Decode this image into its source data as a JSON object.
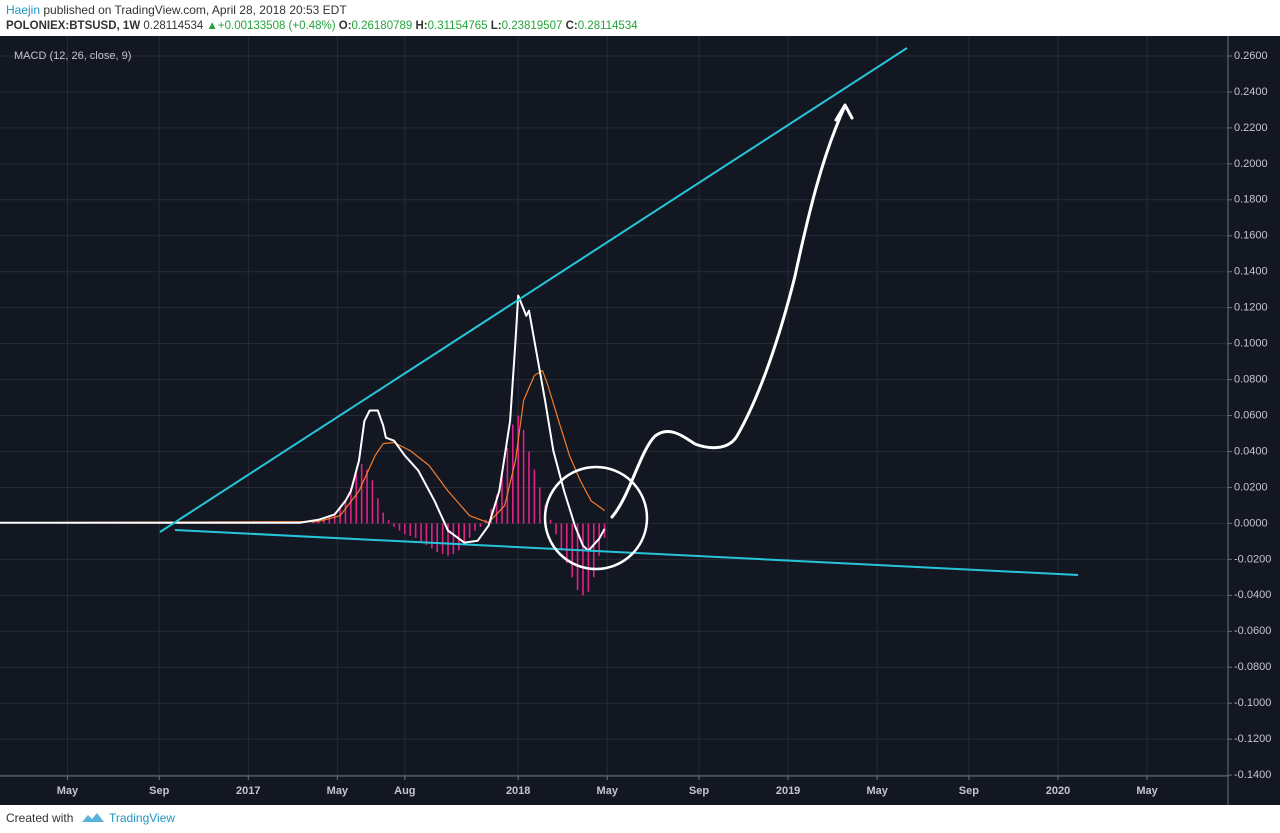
{
  "chart_data": {
    "type": "line",
    "author": "Haejin",
    "published": "published on TradingView.com, April 28, 2018 20:53 EDT",
    "symbol": "POLONIEX:BTSUSD, 1W",
    "last": "0.28114534",
    "change_marker": "▲",
    "change": "+0.00133508 (+0.48%)",
    "ohlc": [
      {
        "label": "O:",
        "value": "0.26180789"
      },
      {
        "label": "H:",
        "value": "0.31154765"
      },
      {
        "label": "L:",
        "value": "0.23819507"
      },
      {
        "label": "C:",
        "value": "0.28114534"
      }
    ],
    "subtitle": "MACD (12, 26, close, 9)",
    "footer": "Created with",
    "brand": "TradingView",
    "xlim": [
      2016.08,
      2020.63
    ],
    "ylim": [
      -0.1405,
      0.27
    ],
    "grid": true,
    "xticks": [
      {
        "value": 2016.33,
        "label": "May"
      },
      {
        "value": 2016.67,
        "label": "Sep"
      },
      2017,
      {
        "value": 2017.33,
        "label": "May"
      },
      {
        "value": 2017.58,
        "label": "Aug"
      },
      2018,
      {
        "value": 2018.33,
        "label": "May"
      },
      {
        "value": 2018.67,
        "label": "Sep"
      },
      2019,
      {
        "value": 2019.33,
        "label": "May"
      },
      {
        "value": 2019.67,
        "label": "Sep"
      },
      2020,
      {
        "value": 2020.33,
        "label": "May"
      }
    ],
    "yticks": [
      {
        "value": 0.26,
        "label": "0.2600"
      },
      {
        "value": 0.24,
        "label": "0.2400"
      },
      {
        "value": 0.22,
        "label": "0.2200"
      },
      {
        "value": 0.2,
        "label": "0.2000"
      },
      {
        "value": 0.18,
        "label": "0.1800"
      },
      {
        "value": 0.16,
        "label": "0.1600"
      },
      {
        "value": 0.14,
        "label": "0.1400"
      },
      {
        "value": 0.12,
        "label": "0.1200"
      },
      {
        "value": 0.1,
        "label": "0.1000"
      },
      {
        "value": 0.08,
        "label": "0.0800"
      },
      {
        "value": 0.06,
        "label": "0.0600"
      },
      {
        "value": 0.04,
        "label": "0.0400"
      },
      {
        "value": 0.02,
        "label": "0.0200"
      },
      {
        "value": 0,
        "label": "0.0000"
      },
      {
        "value": -0.02,
        "label": "-0.0200"
      },
      {
        "value": -0.04,
        "label": "-0.0400"
      },
      {
        "value": -0.06,
        "label": "-0.0600"
      },
      {
        "value": -0.08,
        "label": "-0.0800"
      },
      {
        "value": -0.1,
        "label": "-0.1000"
      },
      {
        "value": -0.12,
        "label": "-0.1200"
      },
      {
        "value": -0.14,
        "label": "-0.1400"
      }
    ],
    "series": [
      {
        "type": "bar",
        "color": "#e0218a",
        "x": [
          2017.24,
          2017.26,
          2017.28,
          2017.3,
          2017.32,
          2017.34,
          2017.36,
          2017.38,
          2017.4,
          2017.42,
          2017.44,
          2017.46,
          2017.48,
          2017.5,
          2017.52,
          2017.54,
          2017.56,
          2017.58,
          2017.6,
          2017.62,
          2017.64,
          2017.66,
          2017.68,
          2017.7,
          2017.72,
          2017.74,
          2017.76,
          2017.78,
          2017.8,
          2017.82,
          2017.84,
          2017.86,
          2017.88,
          2017.9,
          2017.92,
          2017.94,
          2017.96,
          2017.98,
          2018.0,
          2018.02,
          2018.04,
          2018.06,
          2018.08,
          2018.1,
          2018.12,
          2018.14,
          2018.16,
          2018.18,
          2018.2,
          2018.22,
          2018.24,
          2018.26,
          2018.28,
          2018.3,
          2018.32
        ],
        "values": [
          0.001,
          0.002,
          0.003,
          0.004,
          0.006,
          0.009,
          0.013,
          0.02,
          0.028,
          0.033,
          0.03,
          0.024,
          0.014,
          0.006,
          0.002,
          -0.002,
          -0.004,
          -0.006,
          -0.007,
          -0.008,
          -0.01,
          -0.012,
          -0.014,
          -0.016,
          -0.017,
          -0.018,
          -0.017,
          -0.015,
          -0.012,
          -0.008,
          -0.004,
          -0.002,
          0.002,
          0.008,
          0.016,
          0.028,
          0.042,
          0.055,
          0.06,
          0.052,
          0.04,
          0.03,
          0.02,
          0.01,
          0.002,
          -0.006,
          -0.014,
          -0.022,
          -0.03,
          -0.037,
          -0.04,
          -0.038,
          -0.03,
          -0.018,
          -0.008
        ]
      },
      {
        "type": "line",
        "color": "#f57c2a",
        "x": [
          2016.08,
          2017.26,
          2017.34,
          2017.41,
          2017.47,
          2017.5,
          2017.54,
          2017.6,
          2017.67,
          2017.74,
          2017.82,
          2017.89,
          2017.95,
          2017.99,
          2018.02,
          2018.06,
          2018.09,
          2018.11,
          2018.15,
          2018.19,
          2018.23,
          2018.27,
          2018.32
        ],
        "values": [
          0.0004,
          0.001,
          0.0043,
          0.018,
          0.0377,
          0.0444,
          0.045,
          0.0405,
          0.0322,
          0.018,
          0.0043,
          0.0004,
          0.0099,
          0.035,
          0.0684,
          0.0823,
          0.085,
          0.0767,
          0.057,
          0.0377,
          0.0238,
          0.0126,
          0.0071
        ]
      },
      {
        "type": "line",
        "color": "#ffffff",
        "x": [
          2016.08,
          2017.19,
          2017.26,
          2017.32,
          2017.36,
          2017.38,
          2017.41,
          2017.43,
          2017.45,
          2017.48,
          2017.5,
          2017.51,
          2017.54,
          2017.58,
          2017.63,
          2017.69,
          2017.74,
          2017.8,
          2017.85,
          2017.89,
          2017.93,
          2017.97,
          2017.99,
          2018.0,
          2018.03,
          2018.04,
          2018.06,
          2018.1,
          2018.13,
          2018.17,
          2018.21,
          2018.24,
          2018.26,
          2018.3,
          2018.32
        ],
        "values": [
          0.0004,
          0.0004,
          0.002,
          0.005,
          0.0126,
          0.018,
          0.035,
          0.057,
          0.0628,
          0.0628,
          0.0544,
          0.0477,
          0.046,
          0.0377,
          0.0294,
          0.0126,
          -0.004,
          -0.0107,
          -0.0096,
          -0.0013,
          0.018,
          0.057,
          0.1016,
          0.1267,
          0.1155,
          0.1183,
          0.1016,
          0.068,
          0.0405,
          0.018,
          -0.0013,
          -0.0124,
          -0.0152,
          -0.0085,
          -0.003
        ]
      }
    ]
  }
}
